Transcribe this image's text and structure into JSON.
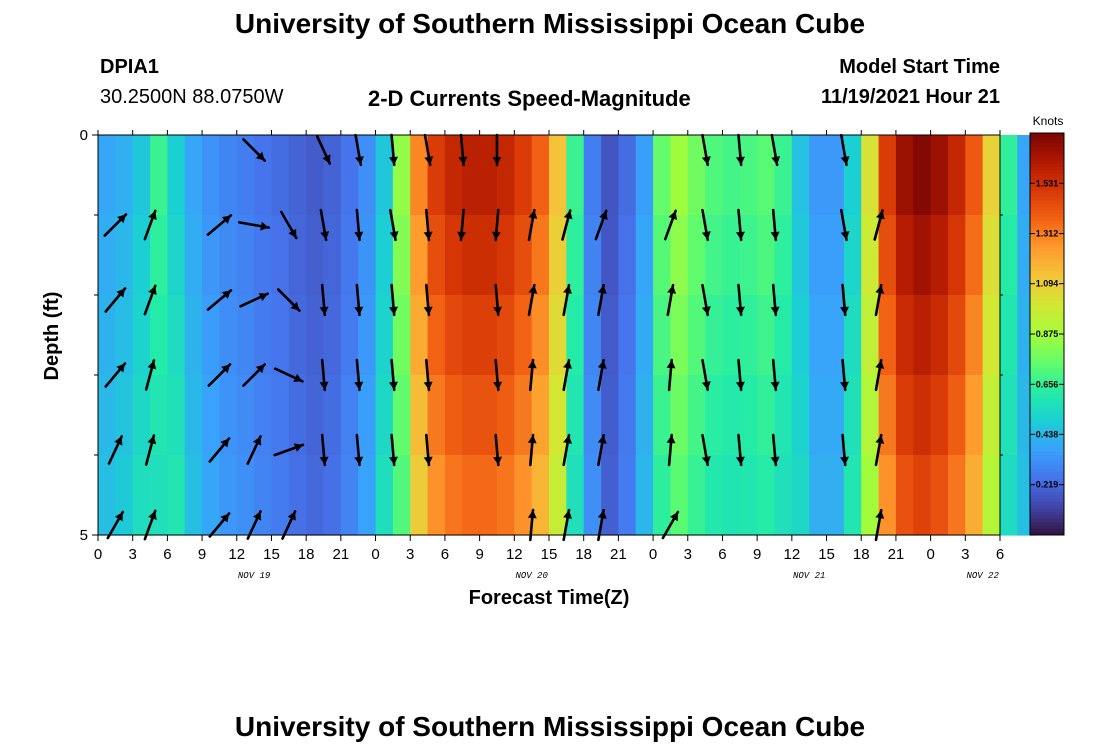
{
  "header": {
    "title": "University of Southern Mississippi Ocean Cube",
    "station": "DPIA1",
    "coords": "30.2500N  88.0750W",
    "subtitle": "2-D Currents Speed-Magnitude",
    "model_label": "Model Start Time",
    "model_time": "11/19/2021 Hour 21"
  },
  "footer": {
    "title": "University of Southern Mississippi Ocean Cube"
  },
  "chart_data": {
    "type": "heatmap",
    "title": "2-D Currents Speed-Magnitude",
    "xlabel": "Forecast Time(Z)",
    "ylabel": "Depth (ft)",
    "ylim": [
      0,
      5
    ],
    "y_ticks": [
      "0",
      "5"
    ],
    "x_tick_labels": [
      "0",
      "3",
      "6",
      "9",
      "12",
      "15",
      "18",
      "21",
      "0",
      "3",
      "6",
      "9",
      "12",
      "15",
      "18",
      "21",
      "0",
      "3",
      "6",
      "9",
      "12",
      "15",
      "18",
      "21",
      "0",
      "3",
      "6"
    ],
    "date_labels": [
      {
        "text": "NOV 19",
        "tick": 4.5
      },
      {
        "text": "NOV 20",
        "tick": 12.5
      },
      {
        "text": "NOV 21",
        "tick": 20.5
      },
      {
        "text": "NOV 22",
        "tick": 25.5
      }
    ],
    "colorbar": {
      "unit": "Knots",
      "min": 0,
      "max": 1.75,
      "ticks": [
        "0.219",
        "0.438",
        "0.656",
        "0.875",
        "1.094",
        "1.312",
        "1.531"
      ],
      "colors": [
        "#30123b",
        "#4145ab",
        "#4675ed",
        "#39a2fc",
        "#1bcfd4",
        "#24eca6",
        "#61fc6c",
        "#a4fc3b",
        "#d1e834",
        "#f3c63a",
        "#fe9b2d",
        "#f36315",
        "#d93806",
        "#b11901",
        "#7a0403"
      ]
    },
    "series_speed_knots": {
      "columns": 54,
      "time_step_hours": 1.5,
      "values": [
        0.42,
        0.45,
        0.52,
        0.62,
        0.55,
        0.42,
        0.36,
        0.32,
        0.3,
        0.27,
        0.25,
        0.22,
        0.2,
        0.22,
        0.27,
        0.35,
        0.52,
        0.78,
        1.2,
        1.38,
        1.45,
        1.48,
        1.48,
        1.45,
        1.38,
        1.28,
        1.05,
        0.62,
        0.3,
        0.18,
        0.25,
        0.4,
        0.7,
        0.8,
        0.72,
        0.66,
        0.64,
        0.65,
        0.68,
        0.62,
        0.5,
        0.38,
        0.38,
        0.55,
        0.95,
        1.38,
        1.55,
        1.6,
        1.55,
        1.45,
        1.3,
        1.0,
        0.6,
        0.42
      ]
    },
    "vectors_direction_deg": {
      "columns_at_ticks": [
        "0",
        "3",
        "6",
        "9",
        "12",
        "15",
        "18",
        "21",
        "0",
        "3",
        "6",
        "9",
        "12",
        "15",
        "18",
        "21",
        "0",
        "3",
        "6",
        "9",
        "12",
        "15",
        "18",
        "21"
      ],
      "rows": [
        [
          null,
          null,
          null,
          null,
          135,
          null,
          155,
          170,
          175,
          170,
          175,
          180,
          null,
          null,
          null,
          null,
          null,
          170,
          175,
          170,
          null,
          170,
          null,
          null
        ],
        [
          45,
          20,
          null,
          50,
          100,
          150,
          170,
          175,
          170,
          175,
          185,
          185,
          10,
          15,
          20,
          null,
          20,
          170,
          175,
          175,
          null,
          170,
          15,
          null
        ],
        [
          40,
          20,
          null,
          50,
          65,
          135,
          175,
          175,
          175,
          175,
          null,
          175,
          10,
          10,
          10,
          null,
          10,
          170,
          175,
          175,
          null,
          175,
          10,
          null
        ],
        [
          40,
          15,
          null,
          45,
          45,
          115,
          175,
          175,
          175,
          175,
          null,
          175,
          5,
          10,
          10,
          null,
          5,
          170,
          175,
          175,
          null,
          175,
          10,
          null
        ],
        [
          25,
          15,
          null,
          40,
          25,
          70,
          175,
          175,
          175,
          175,
          null,
          175,
          5,
          10,
          10,
          null,
          5,
          170,
          175,
          175,
          null,
          175,
          10,
          null
        ],
        [
          30,
          20,
          null,
          40,
          25,
          25,
          null,
          null,
          null,
          null,
          null,
          null,
          5,
          10,
          10,
          null,
          30,
          null,
          null,
          null,
          null,
          null,
          10,
          null
        ]
      ]
    }
  }
}
